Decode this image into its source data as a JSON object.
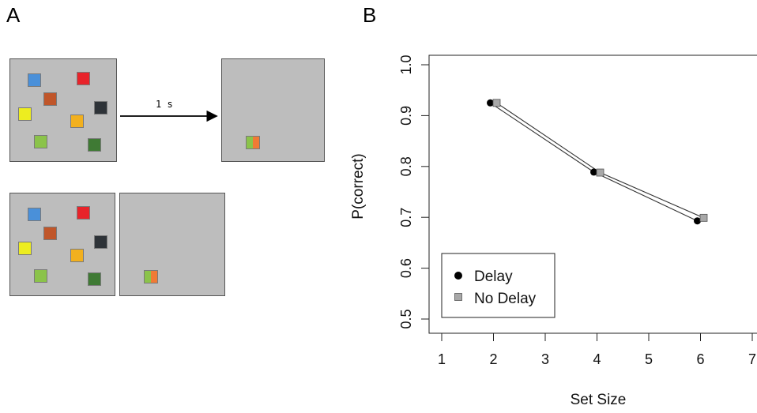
{
  "panel_a": {
    "label": "A",
    "arrow_label": "1 s",
    "sample_squares": [
      {
        "color": "#4a90d9"
      },
      {
        "color": "#e8232a"
      },
      {
        "color": "#c0562a"
      },
      {
        "color": "#2e3338"
      },
      {
        "color": "#eded20"
      },
      {
        "color": "#f2b01e"
      },
      {
        "color": "#8bc34a"
      },
      {
        "color": "#3f7a34"
      }
    ],
    "probe": {
      "left_color": "#8bc34a",
      "right_color": "#f07a35"
    }
  },
  "chart_data": {
    "panel_label": "B",
    "type": "line",
    "title": "",
    "xlabel": "Set Size",
    "ylabel": "P(correct)",
    "xlim": [
      1,
      7
    ],
    "ylim": [
      0.5,
      1.0
    ],
    "xticks": [
      1,
      2,
      3,
      4,
      5,
      6,
      7
    ],
    "yticks": [
      "0.5",
      "0.6",
      "0.7",
      "0.8",
      "0.9",
      "1.0"
    ],
    "grid": false,
    "legend_position": "bottom-left",
    "series": [
      {
        "name": "Delay",
        "marker": "circle",
        "color": "#000000",
        "x": [
          2,
          4,
          6
        ],
        "values": [
          0.925,
          0.789,
          0.693
        ]
      },
      {
        "name": "No Delay",
        "marker": "square",
        "color": "#a8a8a8",
        "x": [
          2,
          4,
          6
        ],
        "values": [
          0.925,
          0.788,
          0.699
        ]
      }
    ]
  }
}
